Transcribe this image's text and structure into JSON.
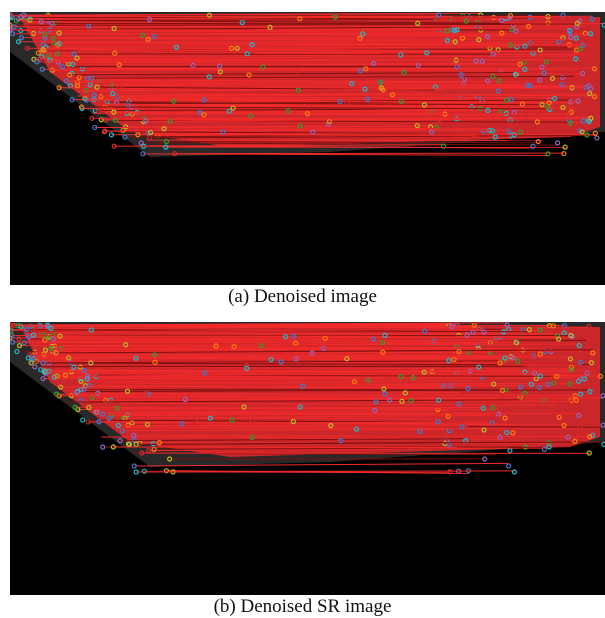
{
  "figure": {
    "panels": [
      {
        "caption": "(a)  Denoised image"
      },
      {
        "caption": "(b)  Denoised SR image"
      }
    ]
  }
}
